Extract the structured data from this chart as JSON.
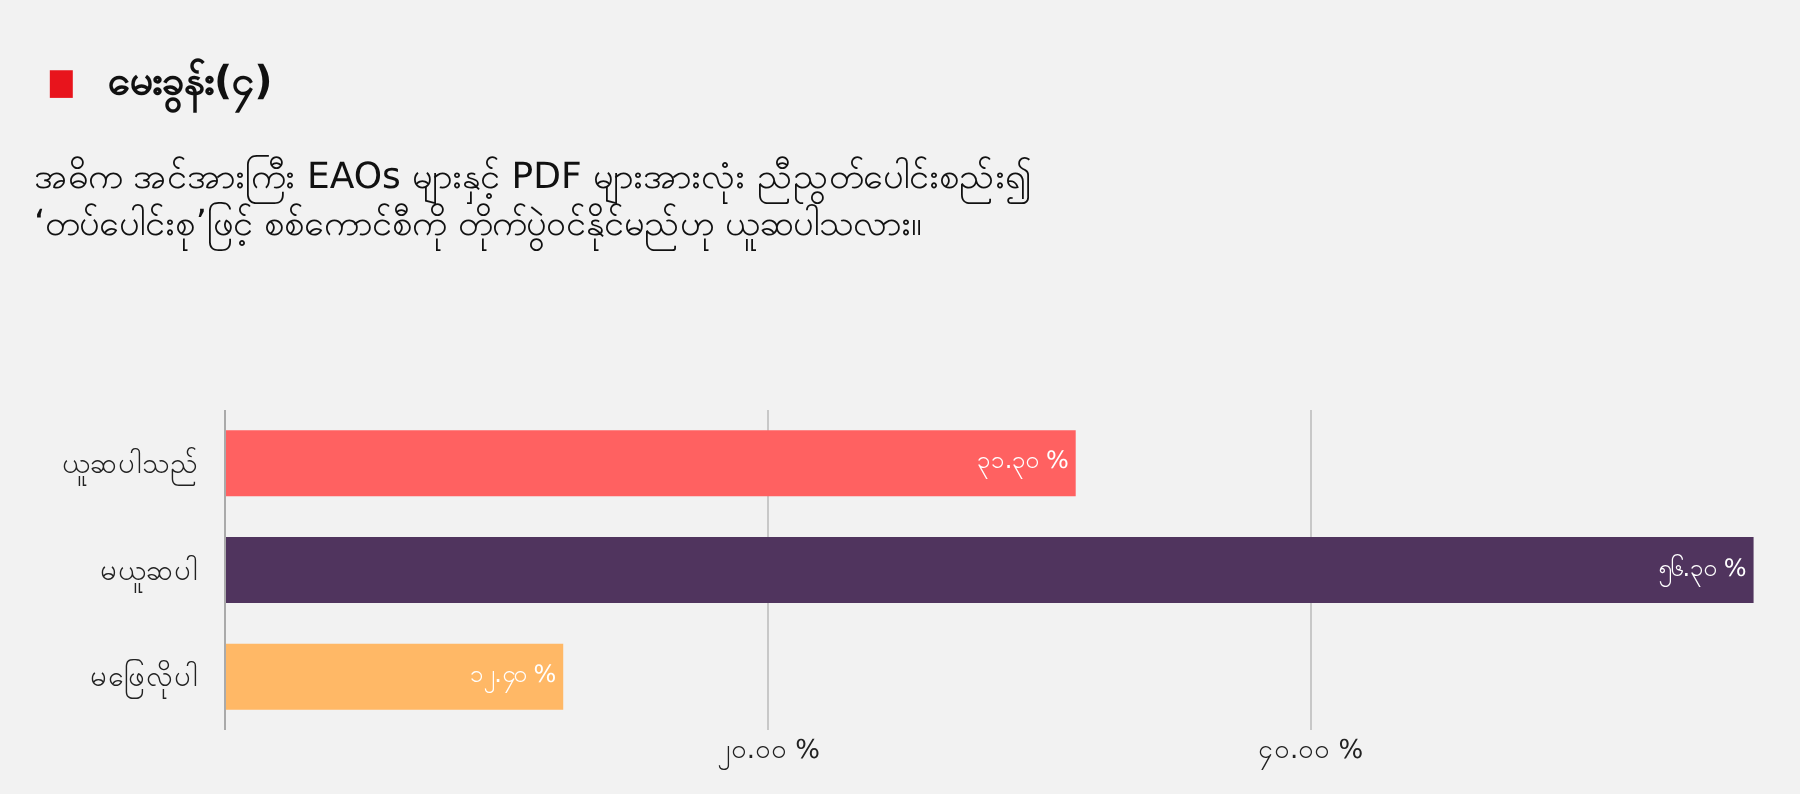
{
  "chart_data": {
    "type": "bar",
    "orientation": "horizontal",
    "title": "မေးခွန်း(၄)",
    "subtitle": "အဓိက အင်အားကြီး EAOs များနှင့် PDF များအားလုံး ညီညွတ်ပေါင်းစည်း၍\n‘တပ်ပေါင်းစု’ဖြင့် စစ်ကောင်စီကို တိုက်ပွဲဝင်နိုင်မည်ဟု ယူဆပါသလား။",
    "categories": [
      "ယူဆပါသည်",
      "မယူဆပါ",
      "မဖြေလိုပါ"
    ],
    "values": [
      31.3,
      56.3,
      12.4
    ],
    "colors": [
      "#ff6161",
      "#50345e",
      "#ffb866"
    ],
    "value_labels": [
      "၃၁.၃၀ %",
      "၅၆.၃၀ %",
      "၁၂.၄၀ %"
    ],
    "xlim": [
      0,
      56.5
    ],
    "xticks": [
      {
        "value": 20,
        "label": "၂၀.၀၀ %"
      },
      {
        "value": 40,
        "label": "၄၀.၀၀ %"
      }
    ],
    "grid": "x",
    "legend": false
  }
}
